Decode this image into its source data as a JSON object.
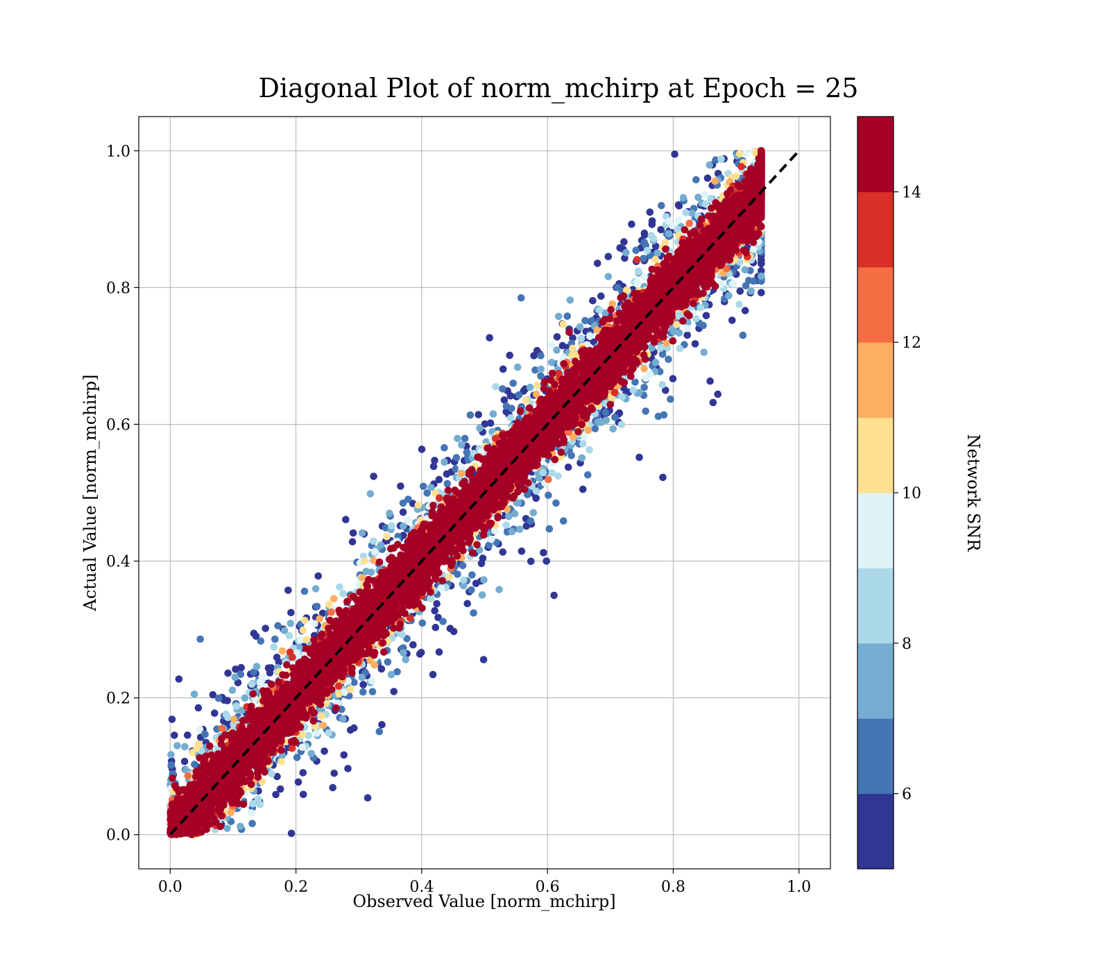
{
  "chart_data": {
    "type": "scatter",
    "title": "Diagonal Plot of norm_mchirp at Epoch = 25",
    "xlabel": "Observed Value [norm_mchirp]",
    "ylabel": "Actual Value [norm_mchirp]",
    "xlim": [
      -0.05,
      1.05
    ],
    "ylim": [
      -0.05,
      1.05
    ],
    "xticks": [
      "0.0",
      "0.2",
      "0.4",
      "0.6",
      "0.8",
      "1.0"
    ],
    "yticks": [
      "0.0",
      "0.2",
      "0.4",
      "0.6",
      "0.8",
      "1.0"
    ],
    "grid": true,
    "reference_line": {
      "x": [
        0.0,
        1.0
      ],
      "y": [
        0.0,
        1.0
      ],
      "style": "dashed",
      "color": "#000000"
    },
    "colorbar": {
      "label": "Network SNR",
      "range": [
        5,
        15
      ],
      "ticks": [
        "6",
        "8",
        "10",
        "12",
        "14"
      ],
      "colors": [
        "#313695",
        "#4575b4",
        "#74add1",
        "#abd9e9",
        "#e0f3f8",
        "#fee090",
        "#fdae61",
        "#f46d43",
        "#d73027",
        "#a50026"
      ]
    },
    "series": [
      {
        "description_points": "approximately 20,000 points; x ranges 0 to 0.94, y ranges 0 to 1.0; high-SNR (>14) points concentrated near the diagonal y = x, low-SNR points scattered widely above and below",
        "x_range": [
          0.0,
          0.94
        ],
        "y_range": [
          0.0,
          1.0
        ]
      }
    ]
  }
}
